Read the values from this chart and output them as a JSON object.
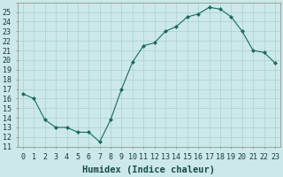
{
  "x": [
    0,
    1,
    2,
    3,
    4,
    5,
    6,
    7,
    8,
    9,
    10,
    11,
    12,
    13,
    14,
    15,
    16,
    17,
    18,
    19,
    20,
    21,
    22,
    23
  ],
  "y": [
    16.5,
    16.0,
    13.8,
    13.0,
    13.0,
    12.5,
    12.5,
    11.5,
    13.8,
    17.0,
    19.8,
    21.5,
    21.8,
    23.0,
    23.5,
    24.5,
    24.8,
    25.5,
    25.3,
    24.5,
    23.0,
    21.0,
    20.8,
    19.7
  ],
  "xlabel": "Humidex (Indice chaleur)",
  "bg_color": "#cce8e8",
  "line_color": "#1a6b5a",
  "marker_color": "#1a6b5a",
  "grid_major_color": "#aad0d0",
  "grid_minor_color": "#c0e0e0",
  "xlim": [
    -0.5,
    23.5
  ],
  "ylim": [
    11,
    26
  ],
  "yticks": [
    11,
    12,
    13,
    14,
    15,
    16,
    17,
    18,
    19,
    20,
    21,
    22,
    23,
    24,
    25
  ],
  "xlabel_fontsize": 7.5,
  "tick_fontsize": 6.0
}
